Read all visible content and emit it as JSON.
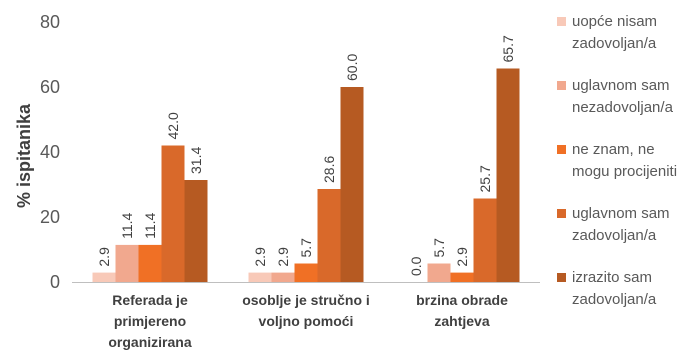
{
  "chart_data": {
    "type": "bar",
    "ylabel": "% ispitanika",
    "ylim": [
      0,
      80
    ],
    "yticks": [
      0,
      20,
      40,
      60,
      80
    ],
    "grid": false,
    "legend_position": "right",
    "categories": [
      [
        "Referada je",
        "primjereno",
        "organizirana"
      ],
      [
        "osoblje je stručno i",
        "voljno pomoći"
      ],
      [
        "brzina obrade",
        "zahtjeva"
      ]
    ],
    "series": [
      {
        "name": [
          "uopće nisam",
          "zadovoljan/a"
        ],
        "color": "#F8C9B8",
        "values": [
          2.9,
          2.9,
          0.0
        ]
      },
      {
        "name": [
          "uglavnom sam",
          "nezadovoljan/a"
        ],
        "color": "#F1A88E",
        "values": [
          11.4,
          2.9,
          5.7
        ]
      },
      {
        "name": [
          "ne znam, ne",
          "mogu procijeniti"
        ],
        "color": "#F07025",
        "values": [
          11.4,
          5.7,
          2.9
        ]
      },
      {
        "name": [
          "uglavnom sam",
          "zadovoljan/a"
        ],
        "color": "#D9692A",
        "values": [
          42.0,
          28.6,
          25.7
        ]
      },
      {
        "name": [
          "izrazito sam",
          "zadovoljan/a"
        ],
        "color": "#B65A22",
        "values": [
          31.4,
          60.0,
          65.7
        ]
      }
    ]
  }
}
